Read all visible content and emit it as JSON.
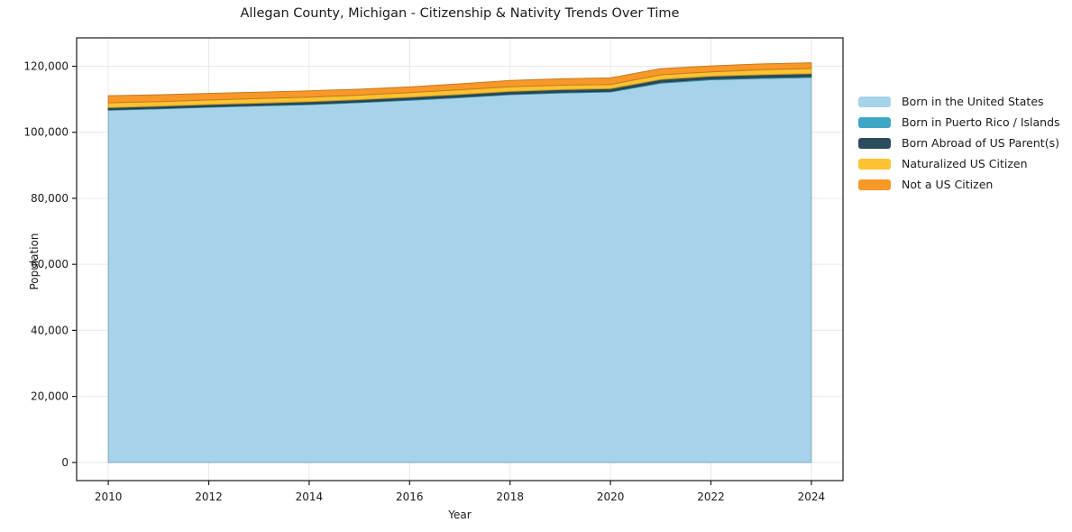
{
  "title": "Allegan County, Michigan - Citizenship & Nativity Trends Over Time",
  "chart_data": {
    "type": "area",
    "stacked": true,
    "title": "Allegan County, Michigan - Citizenship & Nativity Trends Over Time",
    "xlabel": "Year",
    "ylabel": "Population",
    "x": [
      2010,
      2011,
      2012,
      2013,
      2014,
      2015,
      2016,
      2017,
      2018,
      2019,
      2020,
      2021,
      2022,
      2023,
      2024
    ],
    "series": [
      {
        "name": "Born in the United States",
        "color": "#a6d3e9",
        "values": [
          106700,
          107100,
          107600,
          108000,
          108400,
          109000,
          109700,
          110500,
          111400,
          111900,
          112200,
          114900,
          115900,
          116300,
          116600
        ]
      },
      {
        "name": "Born in Puerto Rico / Islands",
        "color": "#3fa7c5",
        "values": [
          200,
          200,
          200,
          200,
          200,
          200,
          250,
          250,
          250,
          250,
          250,
          300,
          300,
          300,
          300
        ]
      },
      {
        "name": "Born Abroad of US Parent(s)",
        "color": "#2b4c5d",
        "values": [
          600,
          600,
          620,
          640,
          660,
          680,
          700,
          720,
          740,
          760,
          780,
          800,
          800,
          820,
          850
        ]
      },
      {
        "name": "Naturalized US Citizen",
        "color": "#fdc330",
        "values": [
          1400,
          1380,
          1350,
          1380,
          1400,
          1380,
          1350,
          1400,
          1400,
          1350,
          1250,
          1400,
          1300,
          1500,
          1600
        ]
      },
      {
        "name": "Not a US Citizen",
        "color": "#f89829",
        "values": [
          2200,
          2100,
          2000,
          1950,
          1900,
          1800,
          1750,
          1800,
          1900,
          1950,
          2000,
          1900,
          1800,
          1800,
          1700
        ]
      }
    ],
    "xticks": [
      {
        "value": 2010,
        "label": "2010"
      },
      {
        "value": 2012,
        "label": "2012"
      },
      {
        "value": 2014,
        "label": "2014"
      },
      {
        "value": 2016,
        "label": "2016"
      },
      {
        "value": 2018,
        "label": "2018"
      },
      {
        "value": 2020,
        "label": "2020"
      },
      {
        "value": 2022,
        "label": "2022"
      },
      {
        "value": 2024,
        "label": "2024"
      }
    ],
    "yticks": [
      {
        "value": 0,
        "label": "0"
      },
      {
        "value": 20000,
        "label": "20,000"
      },
      {
        "value": 40000,
        "label": "40,000"
      },
      {
        "value": 60000,
        "label": "60,000"
      },
      {
        "value": 80000,
        "label": "80,000"
      },
      {
        "value": 100000,
        "label": "100,000"
      },
      {
        "value": 120000,
        "label": "120,000"
      }
    ],
    "xlim": [
      2009.37,
      2024.63
    ],
    "ylim": [
      -5500,
      128600
    ],
    "grid": true,
    "grid_color": "#e8e8e8",
    "spine_color": "#1a1a1a",
    "background": "#ffffff",
    "legend_position": "right"
  }
}
